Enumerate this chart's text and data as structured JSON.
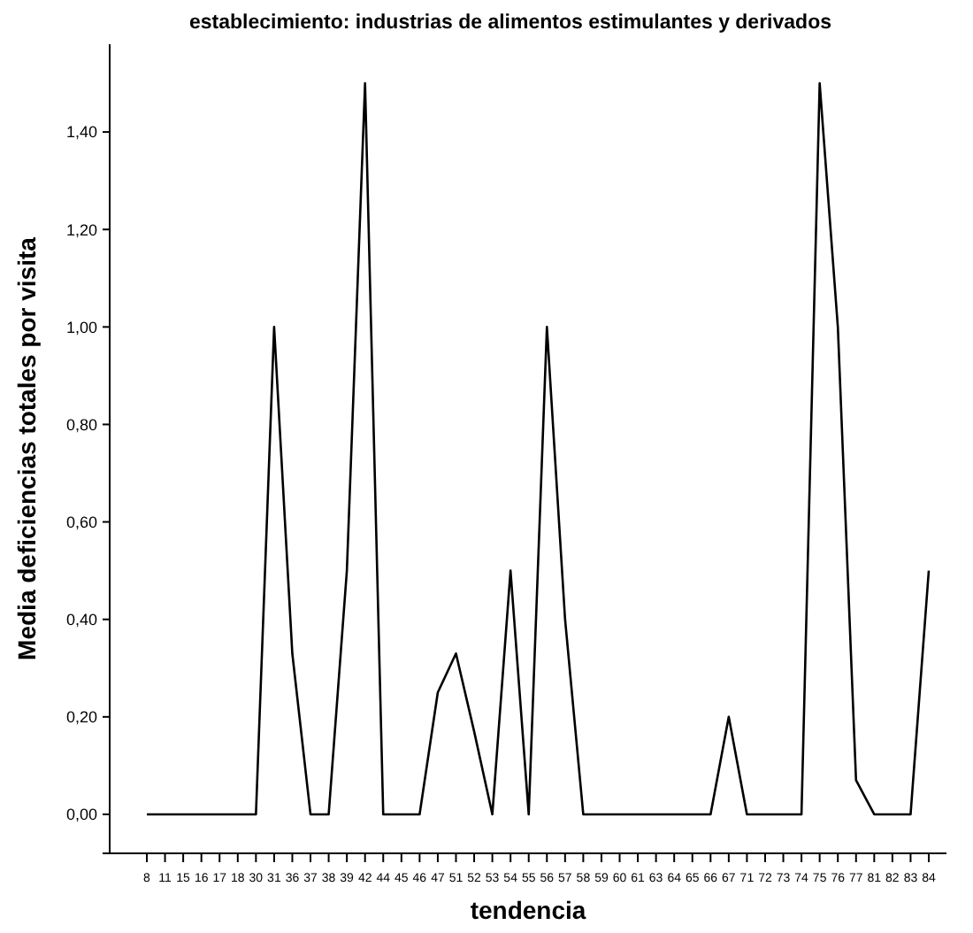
{
  "chart_data": {
    "type": "line",
    "title": "establecimiento: industrias de alimentos estimulantes y derivados",
    "xlabel": "tendencia",
    "ylabel": "Media deficiencias totales por visita",
    "categories": [
      "8",
      "11",
      "15",
      "16",
      "17",
      "18",
      "30",
      "31",
      "36",
      "37",
      "38",
      "39",
      "42",
      "44",
      "45",
      "46",
      "47",
      "51",
      "52",
      "53",
      "54",
      "55",
      "56",
      "57",
      "58",
      "59",
      "60",
      "61",
      "63",
      "64",
      "65",
      "66",
      "67",
      "71",
      "72",
      "73",
      "74",
      "75",
      "76",
      "77",
      "81",
      "82",
      "83",
      "84"
    ],
    "series": [
      {
        "color": "#000000",
        "values": [
          0,
          0,
          0,
          0,
          0,
          0,
          0,
          1.0,
          0.33,
          0,
          0,
          0.5,
          1.5,
          0,
          0,
          0,
          0.25,
          0.33,
          0.17,
          0,
          0.5,
          0,
          1.0,
          0.4,
          0,
          0,
          0,
          0,
          0,
          0,
          0,
          0,
          0.2,
          0,
          0,
          0,
          0,
          1.5,
          1.0,
          0.07,
          0,
          0,
          0,
          0.5
        ]
      }
    ],
    "ylim": [
      -0.08,
      1.58
    ],
    "yticks": [
      {
        "value": 0,
        "label": "0,00"
      },
      {
        "value": 0.2,
        "label": "0,20"
      },
      {
        "value": 0.4,
        "label": "0,40"
      },
      {
        "value": 0.6,
        "label": "0,60"
      },
      {
        "value": 0.8,
        "label": "0,80"
      },
      {
        "value": 1.0,
        "label": "1,00"
      },
      {
        "value": 1.2,
        "label": "1,20"
      },
      {
        "value": 1.4,
        "label": "1,40"
      }
    ],
    "grid": false
  }
}
